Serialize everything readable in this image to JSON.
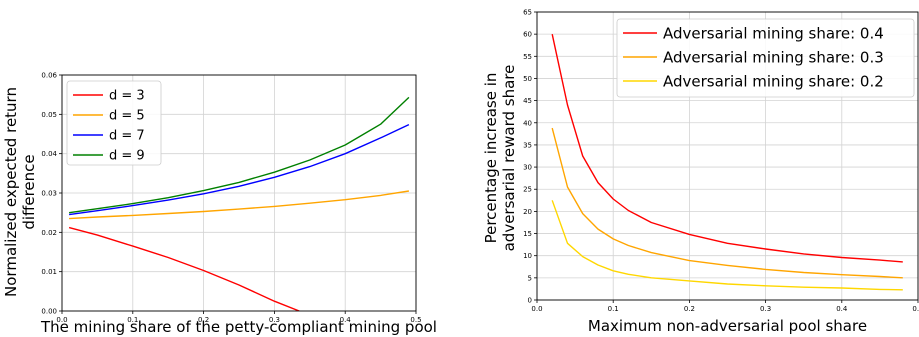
{
  "chart_data": [
    {
      "type": "line",
      "xlabel": "The mining share of the petty-compliant mining pool",
      "ylabel_lines": [
        "Normalized expected return",
        "difference"
      ],
      "xlim": [
        0,
        0.5
      ],
      "ylim": [
        0,
        0.06
      ],
      "xticks": [
        "0.0",
        "0.1",
        "0.2",
        "0.3",
        "0.4",
        "0.5"
      ],
      "yticks": [
        "0.00",
        "0.01",
        "0.02",
        "0.03",
        "0.04",
        "0.05",
        "0.06"
      ],
      "grid": true,
      "legend_position": "top-left",
      "series": [
        {
          "name": "d = 3",
          "color": "#ff0000",
          "x": [
            0.01,
            0.05,
            0.1,
            0.15,
            0.2,
            0.25,
            0.3,
            0.335
          ],
          "y": [
            0.0212,
            0.0193,
            0.0165,
            0.0136,
            0.0103,
            0.0066,
            0.0025,
            0.0
          ]
        },
        {
          "name": "d = 5",
          "color": "#ffa500",
          "x": [
            0.01,
            0.05,
            0.1,
            0.15,
            0.2,
            0.25,
            0.3,
            0.35,
            0.4,
            0.45,
            0.49
          ],
          "y": [
            0.0235,
            0.0239,
            0.0243,
            0.0248,
            0.0253,
            0.0259,
            0.0266,
            0.0274,
            0.0283,
            0.0294,
            0.0305
          ]
        },
        {
          "name": "d = 7",
          "color": "#0000ff",
          "x": [
            0.01,
            0.05,
            0.1,
            0.15,
            0.2,
            0.25,
            0.3,
            0.35,
            0.4,
            0.45,
            0.49
          ],
          "y": [
            0.0245,
            0.0255,
            0.0268,
            0.0282,
            0.0298,
            0.0317,
            0.034,
            0.0367,
            0.04,
            0.044,
            0.0474
          ]
        },
        {
          "name": "d = 9",
          "color": "#008000",
          "x": [
            0.01,
            0.05,
            0.1,
            0.15,
            0.2,
            0.25,
            0.3,
            0.35,
            0.4,
            0.45,
            0.49
          ],
          "y": [
            0.025,
            0.026,
            0.0273,
            0.0288,
            0.0306,
            0.0327,
            0.0353,
            0.0384,
            0.0422,
            0.0475,
            0.0543
          ]
        }
      ]
    },
    {
      "type": "line",
      "xlabel": "Maximum non-adversarial pool share",
      "ylabel_lines": [
        "Percentage increase in",
        "adversarial reward share"
      ],
      "xlim": [
        0,
        0.5
      ],
      "ylim": [
        0,
        65
      ],
      "xticks": [
        "0.0",
        "0.1",
        "0.2",
        "0.3",
        "0.4",
        "0.5"
      ],
      "yticks": [
        "0",
        "5",
        "10",
        "15",
        "20",
        "25",
        "30",
        "35",
        "40",
        "45",
        "50",
        "55",
        "60",
        "65"
      ],
      "grid": true,
      "legend_position": "top-right",
      "series": [
        {
          "name": "Adversarial mining share: 0.4",
          "color": "#ff0000",
          "x": [
            0.02,
            0.04,
            0.06,
            0.08,
            0.1,
            0.12,
            0.15,
            0.2,
            0.25,
            0.3,
            0.35,
            0.4,
            0.45,
            0.48
          ],
          "y": [
            60.0,
            44.0,
            32.5,
            26.5,
            22.8,
            20.2,
            17.5,
            14.8,
            12.8,
            11.5,
            10.4,
            9.6,
            9.0,
            8.6
          ]
        },
        {
          "name": "Adversarial mining share: 0.3",
          "color": "#ffa500",
          "x": [
            0.02,
            0.04,
            0.06,
            0.08,
            0.1,
            0.12,
            0.15,
            0.2,
            0.25,
            0.3,
            0.35,
            0.4,
            0.45,
            0.48
          ],
          "y": [
            38.8,
            25.5,
            19.5,
            16.0,
            13.8,
            12.3,
            10.7,
            8.9,
            7.8,
            6.9,
            6.2,
            5.7,
            5.3,
            5.0
          ]
        },
        {
          "name": "Adversarial mining share: 0.2",
          "color": "#ffd700",
          "x": [
            0.02,
            0.04,
            0.06,
            0.08,
            0.1,
            0.12,
            0.15,
            0.2,
            0.25,
            0.3,
            0.35,
            0.4,
            0.45,
            0.48
          ],
          "y": [
            22.5,
            12.8,
            9.8,
            7.9,
            6.6,
            5.8,
            5.0,
            4.3,
            3.6,
            3.2,
            2.9,
            2.7,
            2.4,
            2.3
          ]
        }
      ]
    }
  ]
}
